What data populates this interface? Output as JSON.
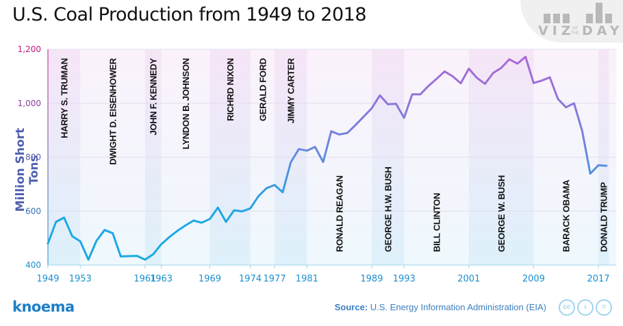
{
  "header": {
    "title": "U.S. Coal Production from 1949 to 2018",
    "badge": {
      "top": "VIZ",
      "of": "OF",
      "the": "THE",
      "bottom": "DAY"
    }
  },
  "footer": {
    "brand": "knoema",
    "source_label": "Source:",
    "source_text": "U.S. Energy Information Administration (EIA)",
    "license_icons": [
      "cc-icon",
      "attribution-icon",
      "no-derivatives-icon"
    ],
    "license_glyphs": [
      "cc",
      "i",
      "="
    ]
  },
  "chart_data": {
    "type": "line",
    "title": "U.S. Coal Production from 1949 to 2018",
    "xlabel": "",
    "ylabel": "Million Short Tons",
    "ylim": [
      400,
      1200
    ],
    "xlim": [
      1949,
      2018
    ],
    "yticks": [
      400,
      600,
      800,
      1000,
      1200
    ],
    "ytick_labels": [
      "400",
      "600",
      "800",
      "1,000",
      "1,200"
    ],
    "xticks": [
      1949,
      1953,
      1961,
      1963,
      1969,
      1974,
      1977,
      1981,
      1989,
      1993,
      2001,
      2009,
      2017
    ],
    "grid": true,
    "legend": "none",
    "colors": {
      "low": "#1aaae4",
      "high": "#b56ad6",
      "ytick_low": "#1a8fcf",
      "ytick_high": "#c2187a"
    },
    "series": [
      {
        "name": "Coal production",
        "x": [
          1949,
          1950,
          1951,
          1952,
          1953,
          1954,
          1955,
          1956,
          1957,
          1958,
          1959,
          1960,
          1961,
          1962,
          1963,
          1964,
          1965,
          1966,
          1967,
          1968,
          1969,
          1970,
          1971,
          1972,
          1973,
          1974,
          1975,
          1976,
          1977,
          1978,
          1979,
          1980,
          1981,
          1982,
          1983,
          1984,
          1985,
          1986,
          1987,
          1988,
          1989,
          1990,
          1991,
          1992,
          1993,
          1994,
          1995,
          1996,
          1997,
          1998,
          1999,
          2000,
          2001,
          2002,
          2003,
          2004,
          2005,
          2006,
          2007,
          2008,
          2009,
          2010,
          2011,
          2012,
          2013,
          2014,
          2015,
          2016,
          2017,
          2018
        ],
        "values": [
          480,
          560,
          576,
          507,
          488,
          420,
          490,
          530,
          518,
          432,
          433,
          434,
          420,
          440,
          477,
          504,
          527,
          547,
          565,
          557,
          571,
          613,
          560,
          603,
          599,
          610,
          655,
          685,
          697,
          670,
          781,
          830,
          824,
          838,
          782,
          896,
          884,
          890,
          919,
          950,
          981,
          1029,
          996,
          998,
          946,
          1033,
          1033,
          1064,
          1090,
          1118,
          1100,
          1074,
          1128,
          1094,
          1072,
          1112,
          1131,
          1163,
          1147,
          1172,
          1075,
          1084,
          1096,
          1016,
          985,
          1000,
          897,
          739,
          770,
          768
        ]
      }
    ],
    "presidents": [
      {
        "name": "HARRY S. TRUMAN",
        "start": 1949,
        "end": 1953,
        "label_pos": "top"
      },
      {
        "name": "DWIGHT D. EISENHOWER",
        "start": 1953,
        "end": 1961,
        "label_pos": "top"
      },
      {
        "name": "JOHN F. KENNEDY",
        "start": 1961,
        "end": 1963,
        "label_pos": "top"
      },
      {
        "name": "LYNDON B. JOHNSON",
        "start": 1963,
        "end": 1969,
        "label_pos": "top"
      },
      {
        "name": "RICHRD NIXON",
        "start": 1969,
        "end": 1974,
        "label_pos": "top"
      },
      {
        "name": "GERALD FORD",
        "start": 1974,
        "end": 1977,
        "label_pos": "top"
      },
      {
        "name": "JIMMY CARTER",
        "start": 1977,
        "end": 1981,
        "label_pos": "top"
      },
      {
        "name": "RONALD REAGAN",
        "start": 1981,
        "end": 1989,
        "label_pos": "bottom"
      },
      {
        "name": "GEORGE H.W. BUSH",
        "start": 1989,
        "end": 1993,
        "label_pos": "bottom"
      },
      {
        "name": "BILL CLINTON",
        "start": 1993,
        "end": 2001,
        "label_pos": "bottom"
      },
      {
        "name": "GEORGE W. BUSH",
        "start": 2001,
        "end": 2009,
        "label_pos": "bottom"
      },
      {
        "name": "BARACK OBAMA",
        "start": 2009,
        "end": 2017,
        "label_pos": "bottom"
      },
      {
        "name": "DONALD TRUMP",
        "start": 2017,
        "end": 2018.3,
        "label_pos": "bottom"
      }
    ]
  }
}
